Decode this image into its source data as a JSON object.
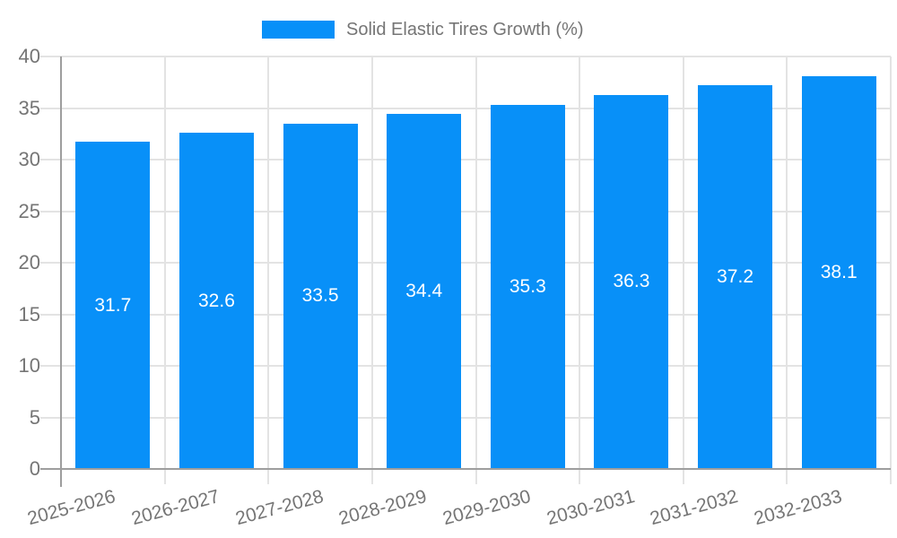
{
  "legend": {
    "label": "Solid Elastic Tires Growth (%)"
  },
  "chart_data": {
    "type": "bar",
    "title": "",
    "xlabel": "",
    "ylabel": "",
    "categories": [
      "2025-2026",
      "2026-2027",
      "2027-2028",
      "2028-2029",
      "2029-2030",
      "2030-2031",
      "2031-2032",
      "2032-2033"
    ],
    "series": [
      {
        "name": "Solid Elastic Tires Growth (%)",
        "values": [
          31.7,
          32.6,
          33.5,
          34.4,
          35.3,
          36.3,
          37.2,
          38.1
        ]
      }
    ],
    "value_labels": [
      "31.7",
      "32.6",
      "33.5",
      "34.4",
      "35.3",
      "36.3",
      "37.2",
      "38.1"
    ],
    "ylim": [
      0,
      40
    ],
    "yticks": [
      0,
      5,
      10,
      15,
      20,
      25,
      30,
      35,
      40
    ],
    "grid": "on",
    "legend_position": "top-center",
    "colors": {
      "bar": "#0890f8",
      "value_label": "#ffffff",
      "axis_text": "#757575",
      "legend_text": "#757575",
      "gridline": "#e3e3e3",
      "axis_line": "#9e9e9e",
      "background": "#ffffff"
    }
  }
}
